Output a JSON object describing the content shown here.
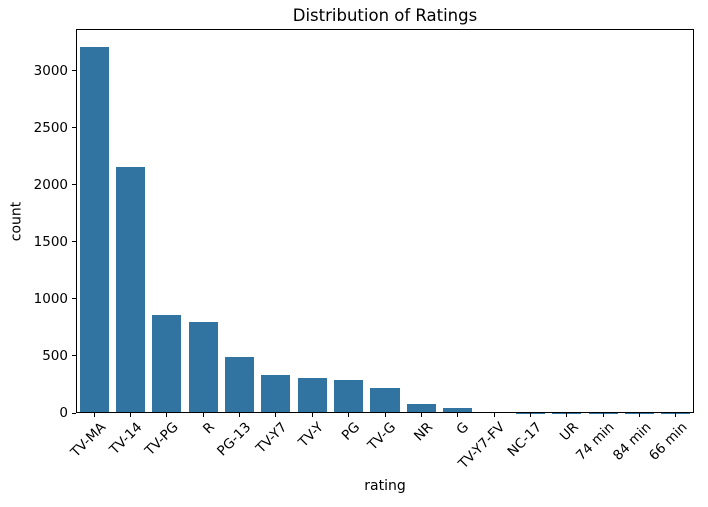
{
  "chart_data": {
    "type": "bar",
    "title": "Distribution of Ratings",
    "xlabel": "rating",
    "ylabel": "count",
    "categories": [
      "TV-MA",
      "TV-14",
      "TV-PG",
      "R",
      "PG-13",
      "TV-Y7",
      "TV-Y",
      "PG",
      "TV-G",
      "NR",
      "G",
      "TV-Y7-FV",
      "NC-17",
      "UR",
      "74 min",
      "84 min",
      "66 min"
    ],
    "values": [
      3207,
      2160,
      863,
      799,
      490,
      334,
      307,
      287,
      220,
      80,
      41,
      6,
      3,
      3,
      1,
      1,
      1
    ],
    "yticks": [
      0,
      500,
      1000,
      1500,
      2000,
      2500,
      3000
    ],
    "ylim": [
      0,
      3367
    ],
    "x_tick_rotation": 45,
    "grid": false,
    "legend_position": "none",
    "bar_color": "#3274A1",
    "axis_color": "#000000",
    "text_color": "#000000",
    "background_color": "#ffffff"
  }
}
